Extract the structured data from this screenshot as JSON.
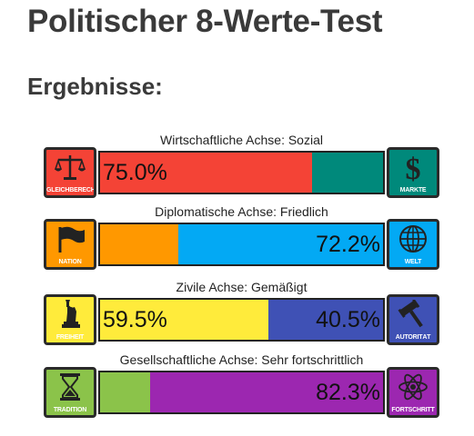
{
  "page": {
    "title": "Politischer 8-Werte-Test",
    "subtitle": "Ergebnisse:"
  },
  "axes": [
    {
      "label": "Wirtschaftliche Achse: Sozial",
      "left": {
        "caption": "GLEICHBERECHTIGUNG",
        "icon": "scales-icon",
        "color": "#f44336",
        "value": 75.0,
        "text": "75.0%"
      },
      "right": {
        "caption": "MÄRKTE",
        "icon": "dollar-icon",
        "color": "#00897b",
        "value": 25.0,
        "text": ""
      }
    },
    {
      "label": "Diplomatische Achse: Friedlich",
      "left": {
        "caption": "NATION",
        "icon": "flag-icon",
        "color": "#ff9800",
        "value": 27.8,
        "text": ""
      },
      "right": {
        "caption": "WELT",
        "icon": "globe-icon",
        "color": "#03a9f4",
        "value": 72.2,
        "text": "72.2%"
      }
    },
    {
      "label": "Zivile Achse: Gemäßigt",
      "left": {
        "caption": "FREIHEIT",
        "icon": "liberty-statue-icon",
        "color": "#ffeb3b",
        "value": 59.5,
        "text": "59.5%"
      },
      "right": {
        "caption": "AUTORITÄT",
        "icon": "gavel-icon",
        "color": "#3f51b5",
        "value": 40.5,
        "text": "40.5%"
      }
    },
    {
      "label": "Gesellschaftliche Achse: Sehr fortschrittlich",
      "left": {
        "caption": "TRADITION",
        "icon": "hourglass-icon",
        "color": "#8bc34a",
        "value": 17.7,
        "text": ""
      },
      "right": {
        "caption": "FORTSCHRITT",
        "icon": "atom-icon",
        "color": "#9c27b0",
        "value": 82.3,
        "text": "82.3%"
      }
    }
  ]
}
